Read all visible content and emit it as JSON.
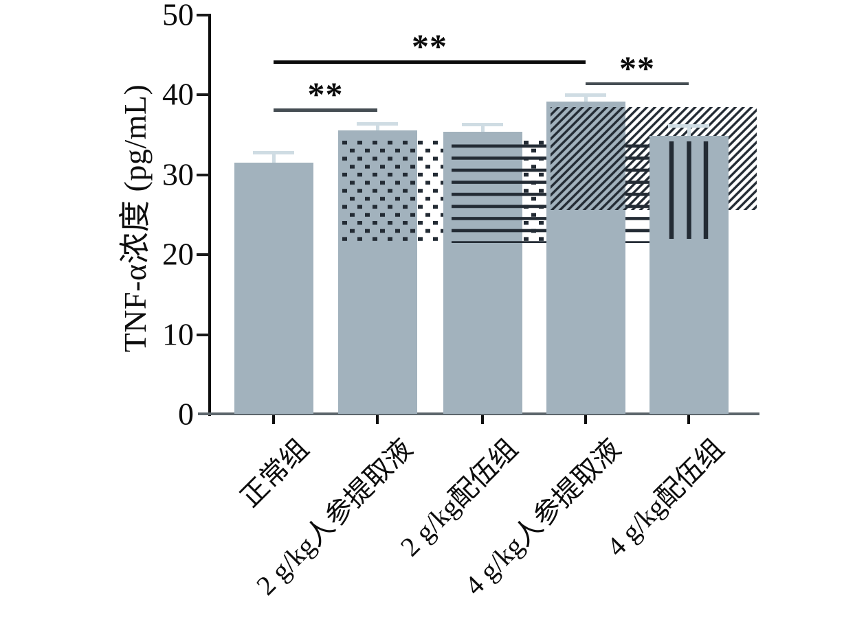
{
  "chart_data": {
    "type": "bar",
    "title": "",
    "xlabel": "",
    "ylabel": "TNF-α浓度 (pg/mL)",
    "ylim": [
      0,
      50
    ],
    "yticks": [
      0,
      10,
      20,
      30,
      40,
      50
    ],
    "grid": false,
    "legend": null,
    "categories": [
      "正常组",
      "2 g/kg人参提取液",
      "2 g/kg配伍组",
      "4 g/kg人参提取液",
      "4 g/kg配伍组"
    ],
    "values": [
      31.5,
      35.6,
      35.4,
      39.2,
      34.9
    ],
    "errors": [
      1.3,
      0.8,
      0.9,
      0.8,
      1.2
    ],
    "bar_patterns": [
      "solid",
      "dots",
      "horizontal-lines",
      "diagonal-hatch",
      "vertical-lines"
    ],
    "significance": [
      {
        "from": 0,
        "to": 1,
        "y": 38.3,
        "label": "**",
        "line_color": "#454d53"
      },
      {
        "from": 0,
        "to": 3,
        "y": 44.3,
        "label": "**",
        "line_color": "#0c0c0c"
      },
      {
        "from": 3,
        "to": 4,
        "y": 41.6,
        "label": "**",
        "line_color": "#454d53"
      }
    ],
    "colors": {
      "bar_fill": "#a2b2bd",
      "pattern": "#232b34",
      "error_bar": "#cfdce3",
      "axis": "#0e0e0e",
      "baseline": "#5d666c"
    }
  }
}
